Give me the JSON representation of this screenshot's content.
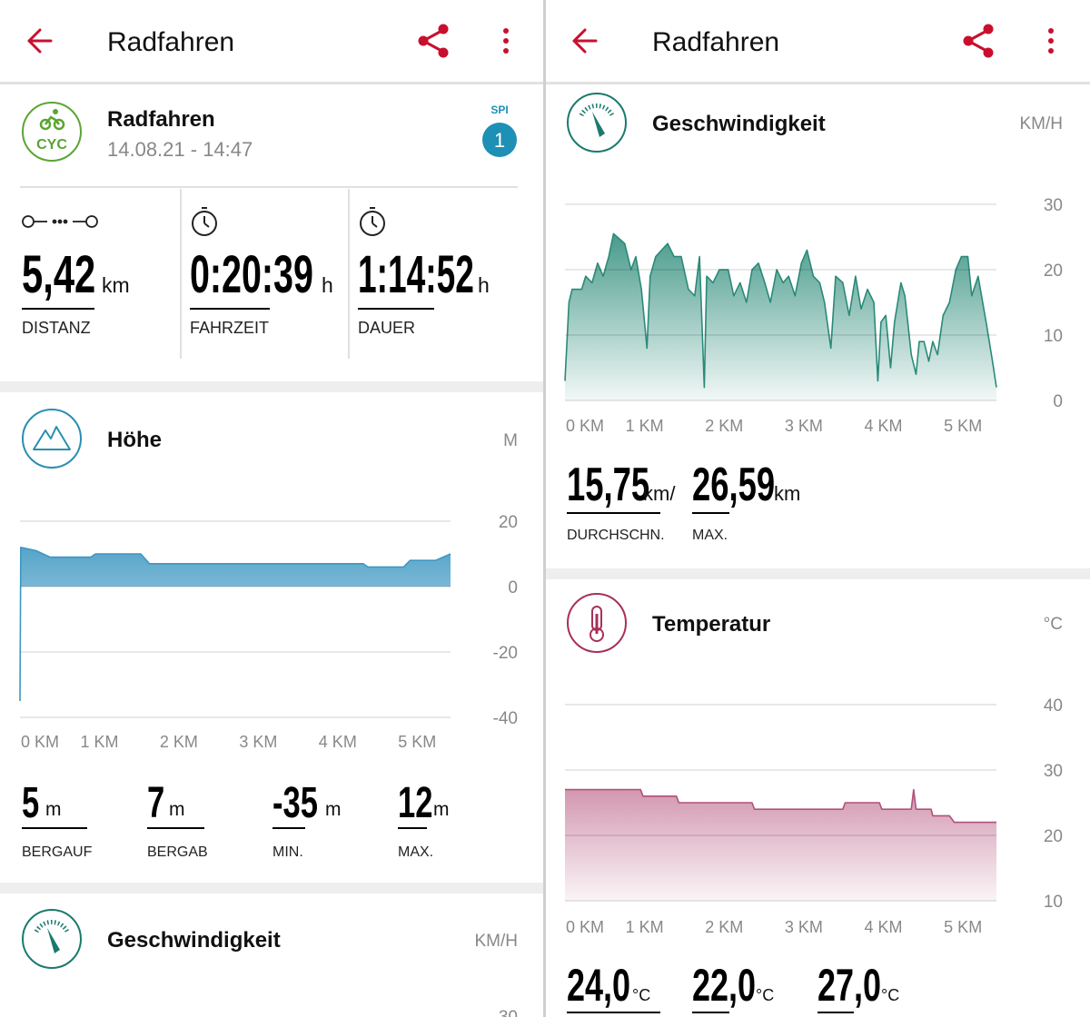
{
  "left": {
    "app_bar": {
      "title": "Radfahren"
    },
    "activity": {
      "icon": "CYC",
      "name": "Radfahren",
      "datetime": "14.08.21 - 14:47",
      "spi_label": "SPI",
      "spi_value": 1
    },
    "stats": [
      {
        "value": "5,42",
        "unit": "km",
        "label": "DISTANZ"
      },
      {
        "value": "0:20:39",
        "unit": "h",
        "label": "FAHRZEIT"
      },
      {
        "value": "1:14:52",
        "unit": "h",
        "label": "DAUER"
      }
    ],
    "altitude_stats": [
      {
        "value": 5,
        "unit": "m",
        "label": "BERGAUF"
      },
      {
        "value": 7,
        "unit": "m",
        "label": "BERGAB"
      },
      {
        "value": -35,
        "unit": "m",
        "label": "MIN."
      },
      {
        "value": 12,
        "unit": "m",
        "label": "MAX."
      }
    ],
    "speed_card": {
      "title": "Geschwindigkeit",
      "unit": "KM/H",
      "top_tick": 30
    }
  },
  "right": {
    "app_bar": {
      "title": "Radfahren"
    },
    "speed_stats": [
      {
        "value": "15,75",
        "unit": "km/",
        "label": "DURCHSCHN."
      },
      {
        "value": "26,59",
        "unit": "km",
        "label": "MAX."
      }
    ],
    "temperature_stats": [
      {
        "value": "24,0",
        "unit": "°C"
      },
      {
        "value": "22,0",
        "unit": "°C"
      },
      {
        "value": "27,0",
        "unit": "°C"
      }
    ]
  },
  "chart_data": [
    {
      "type": "area",
      "title": "Höhe",
      "unit": "M",
      "color": "#3d97c2",
      "x": [
        0,
        0.01,
        0.2,
        0.38,
        0.89,
        0.95,
        1.52,
        1.63,
        4.32,
        4.38,
        4.83,
        4.91,
        5.23,
        5.42
      ],
      "values": [
        -35,
        12,
        11,
        9,
        9,
        10,
        10,
        7,
        7,
        6,
        6,
        8,
        8,
        10
      ],
      "xlim": [
        0,
        5.42
      ],
      "ylim": [
        -40,
        20
      ],
      "xticks": [
        {
          "value": 0,
          "label": "0 KM"
        },
        {
          "value": 1,
          "label": "1 KM"
        },
        {
          "value": 2,
          "label": "2 KM"
        },
        {
          "value": 3,
          "label": "3 KM"
        },
        {
          "value": 4,
          "label": "4 KM"
        },
        {
          "value": 5,
          "label": "5 KM"
        }
      ],
      "yticks": [
        20,
        0,
        -20,
        -40
      ],
      "grid": true
    },
    {
      "type": "area",
      "title": "Geschwindigkeit",
      "unit": "KM/H",
      "color": "#2a8a78",
      "x": [
        0,
        0.05,
        0.09,
        0.21,
        0.26,
        0.34,
        0.41,
        0.48,
        0.55,
        0.61,
        0.75,
        0.83,
        0.89,
        0.96,
        1.03,
        1.07,
        1.14,
        1.29,
        1.37,
        1.46,
        1.55,
        1.63,
        1.69,
        1.75,
        1.78,
        1.86,
        1.94,
        2.05,
        2.12,
        2.2,
        2.28,
        2.35,
        2.43,
        2.51,
        2.58,
        2.66,
        2.74,
        2.81,
        2.89,
        2.97,
        3.04,
        3.12,
        3.2,
        3.26,
        3.34,
        3.4,
        3.49,
        3.57,
        3.65,
        3.72,
        3.8,
        3.88,
        3.93,
        3.97,
        4.03,
        4.09,
        4.14,
        4.22,
        4.27,
        4.35,
        4.41,
        4.45,
        4.51,
        4.57,
        4.62,
        4.68,
        4.75,
        4.83,
        4.91,
        4.98,
        5.06,
        5.11,
        5.19,
        5.29,
        5.37,
        5.42
      ],
      "values": [
        3,
        15,
        17,
        17,
        19,
        18,
        21,
        19,
        22,
        25.5,
        24,
        20,
        22,
        17,
        8,
        19,
        22,
        24,
        22,
        22,
        17,
        16,
        22,
        2,
        19,
        18,
        20,
        20,
        16,
        18,
        15,
        20,
        21,
        18,
        15,
        20,
        18,
        19,
        16,
        21,
        23,
        19,
        18,
        15,
        8,
        19,
        18,
        13,
        19,
        14,
        17,
        15,
        3,
        12,
        13,
        5,
        12,
        18,
        16,
        7,
        4,
        9,
        9,
        6,
        9,
        7,
        13,
        15,
        20,
        22,
        22,
        16,
        19,
        12,
        6,
        2
      ],
      "xlim": [
        0,
        5.42
      ],
      "ylim": [
        0,
        30
      ],
      "xticks": [
        {
          "value": 0,
          "label": "0 KM"
        },
        {
          "value": 1,
          "label": "1 KM"
        },
        {
          "value": 2,
          "label": "2 KM"
        },
        {
          "value": 3,
          "label": "3 KM"
        },
        {
          "value": 4,
          "label": "4 KM"
        },
        {
          "value": 5,
          "label": "5 KM"
        }
      ],
      "yticks": [
        30,
        20,
        10,
        0
      ],
      "grid": true
    },
    {
      "type": "area",
      "title": "Temperatur",
      "unit": "°C",
      "color": "#b3507a",
      "x": [
        0,
        0.95,
        0.98,
        1.4,
        1.43,
        2.35,
        2.38,
        3.49,
        3.52,
        3.95,
        3.98,
        4.35,
        4.38,
        4.41,
        4.6,
        4.62,
        4.83,
        4.89,
        5.42
      ],
      "values": [
        27,
        27,
        26,
        26,
        25,
        25,
        24,
        24,
        25,
        25,
        24,
        24,
        27,
        24,
        24,
        23,
        23,
        22,
        22
      ],
      "xlim": [
        0,
        5.42
      ],
      "ylim": [
        10,
        40
      ],
      "xticks": [
        {
          "value": 0,
          "label": "0 KM"
        },
        {
          "value": 1,
          "label": "1 KM"
        },
        {
          "value": 2,
          "label": "2 KM"
        },
        {
          "value": 3,
          "label": "3 KM"
        },
        {
          "value": 4,
          "label": "4 KM"
        },
        {
          "value": 5,
          "label": "5 KM"
        }
      ],
      "yticks": [
        40,
        30,
        20,
        10
      ],
      "grid": true
    }
  ]
}
